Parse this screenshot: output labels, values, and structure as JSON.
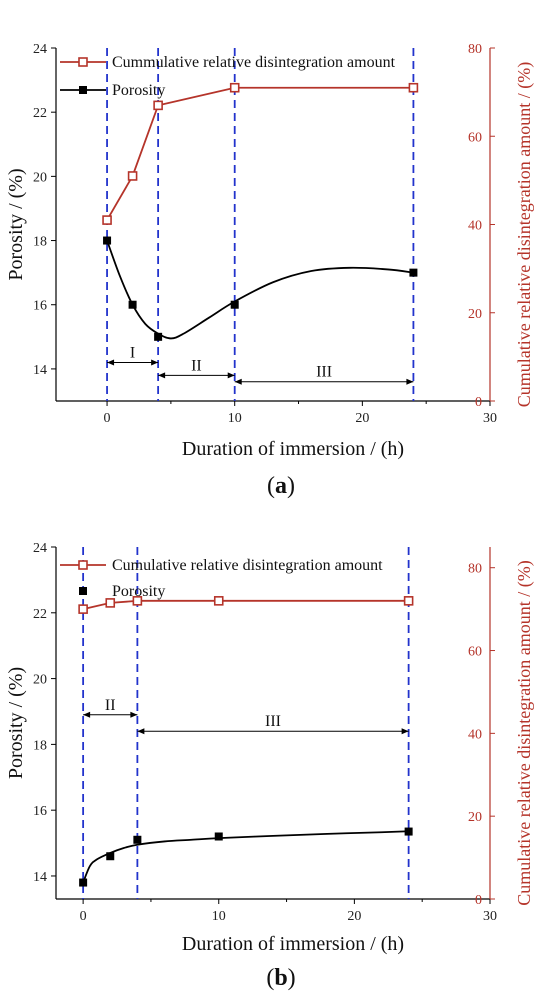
{
  "chart_data": [
    {
      "type": "line",
      "panel_label": "a",
      "xlabel": "Duration of immersion / (h)",
      "ylabel": "Porosity / (%)",
      "ylabel_right": "Cumulative relative disintegration amount / (%)",
      "xlim": [
        -4,
        30
      ],
      "ylim": [
        13,
        24
      ],
      "ylim_right": [
        0,
        80
      ],
      "x_ticks": [
        0,
        10,
        20,
        30
      ],
      "y_ticks": [
        14,
        16,
        18,
        20,
        22,
        24
      ],
      "y_ticks_right": [
        0,
        20,
        40,
        60,
        80
      ],
      "legend_position": "top-left",
      "series": [
        {
          "name": "Cummulative relative disintegration amount",
          "axis": "right",
          "color": "#b5342a",
          "marker": "open-square",
          "x": [
            0,
            2,
            4,
            10,
            24
          ],
          "y": [
            41,
            51,
            67,
            71,
            71
          ]
        },
        {
          "name": "Porosity",
          "axis": "left",
          "color": "#000000",
          "marker": "filled-square",
          "x": [
            0,
            2,
            4,
            10,
            24
          ],
          "y": [
            18,
            16,
            15,
            16,
            17
          ],
          "fit_curve": [
            [
              0,
              18
            ],
            [
              1,
              16.9
            ],
            [
              2,
              16
            ],
            [
              3,
              15.4
            ],
            [
              4,
              15.1
            ],
            [
              5,
              14.95
            ],
            [
              6,
              15.1
            ],
            [
              8,
              15.6
            ],
            [
              10,
              16.1
            ],
            [
              13,
              16.7
            ],
            [
              16,
              17.05
            ],
            [
              19,
              17.15
            ],
            [
              22,
              17.1
            ],
            [
              24,
              17
            ]
          ]
        }
      ],
      "vlines": [
        0,
        4,
        10,
        24
      ],
      "stages": [
        {
          "label": "I",
          "x_start": 0,
          "x_end": 4,
          "y": 14.2
        },
        {
          "label": "II",
          "x_start": 4,
          "x_end": 10,
          "y": 13.8
        },
        {
          "label": "III",
          "x_start": 10,
          "x_end": 24,
          "y": 13.6
        }
      ]
    },
    {
      "type": "line",
      "panel_label": "b",
      "xlabel": "Duration of immersion / (h)",
      "ylabel": "Porosity / (%)",
      "ylabel_right": "Cumulative relative disintegration amount / (%)",
      "xlim": [
        -2,
        30
      ],
      "ylim": [
        13.3,
        24
      ],
      "ylim_right": [
        0,
        85
      ],
      "x_ticks": [
        0,
        10,
        20,
        30
      ],
      "y_ticks": [
        14,
        16,
        18,
        20,
        22,
        24
      ],
      "y_ticks_right": [
        0,
        20,
        40,
        60,
        80
      ],
      "legend_position": "top-left",
      "series": [
        {
          "name": "Cumulative relative disintegration amount",
          "axis": "right",
          "color": "#b5342a",
          "marker": "open-square",
          "x": [
            0,
            2,
            4,
            10,
            24
          ],
          "y": [
            70,
            71.5,
            72,
            72,
            72
          ]
        },
        {
          "name": "Porosity",
          "axis": "left",
          "color": "#000000",
          "marker": "filled-square",
          "x": [
            0,
            2,
            4,
            10,
            24
          ],
          "y": [
            13.8,
            14.6,
            15.1,
            15.2,
            15.35
          ],
          "fit_curve": [
            [
              0,
              13.8
            ],
            [
              0.5,
              14.3
            ],
            [
              1,
              14.5
            ],
            [
              2,
              14.7
            ],
            [
              3,
              14.85
            ],
            [
              4,
              14.95
            ],
            [
              6,
              15.05
            ],
            [
              8,
              15.1
            ],
            [
              10,
              15.15
            ],
            [
              14,
              15.22
            ],
            [
              18,
              15.28
            ],
            [
              22,
              15.33
            ],
            [
              24,
              15.36
            ]
          ]
        }
      ],
      "vlines": [
        0,
        4,
        24
      ],
      "stages": [
        {
          "label": "II",
          "x_start": 0,
          "x_end": 4,
          "y": 18.9
        },
        {
          "label": "III",
          "x_start": 4,
          "x_end": 24,
          "y": 18.4
        }
      ]
    }
  ]
}
